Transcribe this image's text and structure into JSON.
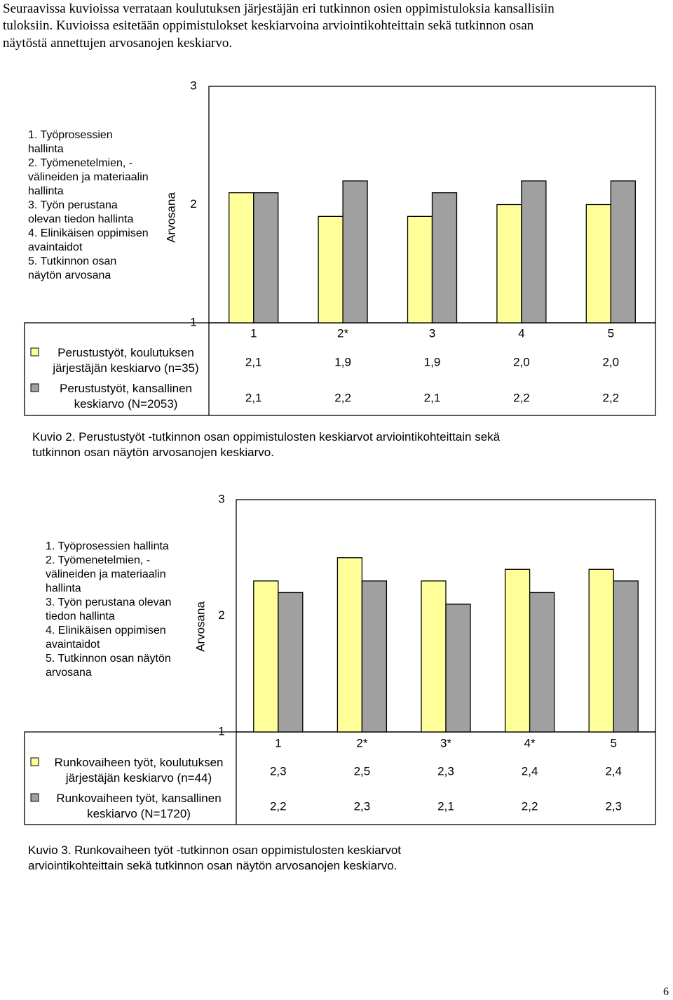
{
  "intro_lines": [
    "Seuraavissa kuvioissa verrataan koulutuksen järjestäjän eri tutkinnon osien oppimistuloksia kansallisiin",
    "tuloksiin. Kuvioissa esitetään oppimistulokset keskiarvoina arviointikohteittain sekä tutkinnon osan",
    "näytöstä annettujen arvosanojen keskiarvo."
  ],
  "chart_data": [
    {
      "type": "bar",
      "ylabel": "Arvosana",
      "ylim": [
        1,
        3
      ],
      "yticks": [
        1,
        2,
        3
      ],
      "category_descriptions": [
        "1. Työprosessien hallinta",
        "2. Työmenetelmien, -välineiden ja materiaalin hallinta",
        "3. Työn perustana olevan tiedon hallinta",
        "4. Elinikäisen oppimisen avaintaidot",
        "5. Tutkinnon osan näytön arvosana"
      ],
      "categories": [
        "1",
        "2*",
        "3",
        "4",
        "5"
      ],
      "series": [
        {
          "name": "Perustustyöt, koulutuksen järjestäjän keskiarvo (n=35)",
          "color": "#ffff99",
          "values": [
            2.1,
            1.9,
            1.9,
            2.0,
            2.0
          ],
          "value_labels": [
            "2,1",
            "1,9",
            "1,9",
            "2,0",
            "2,0"
          ]
        },
        {
          "name": "Perustustyöt, kansallinen keskiarvo (N=2053)",
          "color": "#a0a0a0",
          "values": [
            2.1,
            2.2,
            2.1,
            2.2,
            2.2
          ],
          "value_labels": [
            "2,1",
            "2,2",
            "2,1",
            "2,2",
            "2,2"
          ]
        }
      ],
      "caption": "Kuvio 2. Perustustyöt -tutkinnon osan oppimistulosten keskiarvot arviointikohteittain sekä tutkinnon osan näytön arvosanojen keskiarvo."
    },
    {
      "type": "bar",
      "ylabel": "Arvosana",
      "ylim": [
        1,
        3
      ],
      "yticks": [
        1,
        2,
        3
      ],
      "category_descriptions": [
        "1. Työprosessien hallinta",
        "2. Työmenetelmien, -välineiden ja materiaalin hallinta",
        "3. Työn perustana olevan tiedon hallinta",
        "4. Elinikäisen oppimisen avaintaidot",
        "5. Tutkinnon osan näytön arvosana"
      ],
      "categories": [
        "1",
        "2*",
        "3*",
        "4*",
        "5"
      ],
      "series": [
        {
          "name": "Runkovaiheen työt, koulutuksen järjestäjän keskiarvo (n=44)",
          "color": "#ffff99",
          "values": [
            2.3,
            2.5,
            2.3,
            2.4,
            2.4
          ],
          "value_labels": [
            "2,3",
            "2,5",
            "2,3",
            "2,4",
            "2,4"
          ]
        },
        {
          "name": "Runkovaiheen työt, kansallinen keskiarvo (N=1720)",
          "color": "#a0a0a0",
          "values": [
            2.2,
            2.3,
            2.1,
            2.2,
            2.3
          ],
          "value_labels": [
            "2,2",
            "2,3",
            "2,1",
            "2,2",
            "2,3"
          ]
        }
      ],
      "caption": "Kuvio 3. Runkovaiheen työt -tutkinnon osan oppimistulosten keskiarvot arviointikohteittain sekä tutkinnon osan näytön arvosanojen keskiarvo."
    }
  ],
  "page_number": "6"
}
